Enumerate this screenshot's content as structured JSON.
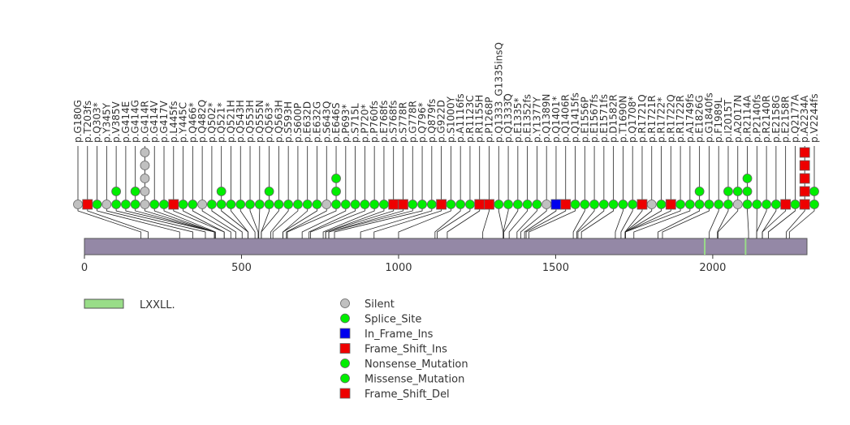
{
  "chart_data": {
    "type": "lollipop",
    "xlim": [
      0,
      2300
    ],
    "x_ticks": [
      "0",
      "500",
      "1000",
      "1500",
      "2000"
    ],
    "protein_length": 2300,
    "domains": [
      {
        "name": "LXXLL.",
        "start": 1972,
        "end": 1977,
        "color": "#99dd88"
      },
      {
        "name": "LXXLL.",
        "start": 2102,
        "end": 2107,
        "color": "#99dd88"
      }
    ],
    "legend": {
      "domain": {
        "label": "LXXLL.",
        "color": "#99dd88"
      },
      "mutation_types": [
        {
          "label": "Silent",
          "color": "#c0c0c0",
          "shape": "circle"
        },
        {
          "label": "Splice_Site",
          "color": "#00ee00",
          "shape": "circle"
        },
        {
          "label": "In_Frame_Ins",
          "color": "#0000ee",
          "shape": "square"
        },
        {
          "label": "Frame_Shift_Ins",
          "color": "#ee0000",
          "shape": "square"
        },
        {
          "label": "Nonsense_Mutation",
          "color": "#00ee00",
          "shape": "circle"
        },
        {
          "label": "Missense_Mutation",
          "color": "#00ee00",
          "shape": "circle"
        },
        {
          "label": "Frame_Shift_Del",
          "color": "#ee0000",
          "shape": "square"
        }
      ]
    },
    "mutations": [
      {
        "label": "p.G180G",
        "pos": 180,
        "stack": [
          "S"
        ]
      },
      {
        "label": "p.T203fs",
        "pos": 203,
        "stack": [
          "F"
        ]
      },
      {
        "label": "p.Q303*",
        "pos": 303,
        "stack": [
          "G"
        ]
      },
      {
        "label": "p.Y345Y",
        "pos": 345,
        "stack": [
          "S"
        ]
      },
      {
        "label": "p.V385V",
        "pos": 385,
        "stack": [
          "G",
          "G"
        ]
      },
      {
        "label": "p.G414E",
        "pos": 414,
        "stack": [
          "G"
        ]
      },
      {
        "label": "p.G414G",
        "pos": 414,
        "stack": [
          "G",
          "G"
        ]
      },
      {
        "label": "p.G414R",
        "pos": 414,
        "stack": [
          "S",
          "S",
          "S",
          "S",
          "S"
        ]
      },
      {
        "label": "p.G414V",
        "pos": 414,
        "stack": [
          "G"
        ]
      },
      {
        "label": "p.G417V",
        "pos": 417,
        "stack": [
          "G"
        ]
      },
      {
        "label": "p.L445fs",
        "pos": 445,
        "stack": [
          "F"
        ]
      },
      {
        "label": "p.Y445C",
        "pos": 445,
        "stack": [
          "G"
        ]
      },
      {
        "label": "p.Q466*",
        "pos": 466,
        "stack": [
          "G"
        ]
      },
      {
        "label": "p.Q482Q",
        "pos": 482,
        "stack": [
          "S"
        ]
      },
      {
        "label": "p.Q502*",
        "pos": 502,
        "stack": [
          "G"
        ]
      },
      {
        "label": "p.Q521*",
        "pos": 521,
        "stack": [
          "G",
          "G"
        ]
      },
      {
        "label": "p.Q521H",
        "pos": 521,
        "stack": [
          "G"
        ]
      },
      {
        "label": "p.Q543H",
        "pos": 543,
        "stack": [
          "G"
        ]
      },
      {
        "label": "p.Q553H",
        "pos": 553,
        "stack": [
          "G"
        ]
      },
      {
        "label": "p.Q555N",
        "pos": 555,
        "stack": [
          "G"
        ]
      },
      {
        "label": "p.Q563*",
        "pos": 563,
        "stack": [
          "G",
          "G"
        ]
      },
      {
        "label": "p.Q563H",
        "pos": 563,
        "stack": [
          "G"
        ]
      },
      {
        "label": "p.S593H",
        "pos": 593,
        "stack": [
          "G"
        ]
      },
      {
        "label": "p.S600P",
        "pos": 600,
        "stack": [
          "G"
        ]
      },
      {
        "label": "p.E632D",
        "pos": 632,
        "stack": [
          "G"
        ]
      },
      {
        "label": "p.E632G",
        "pos": 632,
        "stack": [
          "G"
        ]
      },
      {
        "label": "p.S643Q",
        "pos": 643,
        "stack": [
          "S"
        ]
      },
      {
        "label": "p.E646S",
        "pos": 646,
        "stack": [
          "G",
          "G",
          "G"
        ]
      },
      {
        "label": "p.P693*",
        "pos": 693,
        "stack": [
          "G"
        ]
      },
      {
        "label": "p.S715L",
        "pos": 715,
        "stack": [
          "G"
        ]
      },
      {
        "label": "p.P720*",
        "pos": 720,
        "stack": [
          "G"
        ]
      },
      {
        "label": "p.P760fs",
        "pos": 760,
        "stack": [
          "G"
        ]
      },
      {
        "label": "p.E768fs",
        "pos": 768,
        "stack": [
          "G"
        ]
      },
      {
        "label": "p.S768fs",
        "pos": 768,
        "stack": [
          "F"
        ]
      },
      {
        "label": "p.S778R",
        "pos": 778,
        "stack": [
          "F"
        ]
      },
      {
        "label": "p.G778R",
        "pos": 778,
        "stack": [
          "G"
        ]
      },
      {
        "label": "p.Q796*",
        "pos": 796,
        "stack": [
          "G"
        ]
      },
      {
        "label": "p.Q879fs",
        "pos": 879,
        "stack": [
          "G"
        ]
      },
      {
        "label": "p.G922D",
        "pos": 922,
        "stack": [
          "F"
        ]
      },
      {
        "label": "p.S1000Y",
        "pos": 1000,
        "stack": [
          "G"
        ]
      },
      {
        "label": "p.A1116fs",
        "pos": 1116,
        "stack": [
          "G"
        ]
      },
      {
        "label": "p.R1123C",
        "pos": 1123,
        "stack": [
          "G"
        ]
      },
      {
        "label": "p.R1155H",
        "pos": 1155,
        "stack": [
          "F"
        ]
      },
      {
        "label": "p.P1268P",
        "pos": 1268,
        "stack": [
          "F"
        ]
      },
      {
        "label": "p.Q1333_G1335insQ",
        "pos": 1333,
        "stack": [
          "G"
        ]
      },
      {
        "label": "p.Q1333Q",
        "pos": 1333,
        "stack": [
          "G"
        ]
      },
      {
        "label": "p.E1335*",
        "pos": 1335,
        "stack": [
          "G"
        ]
      },
      {
        "label": "p.E1352fs",
        "pos": 1352,
        "stack": [
          "G"
        ]
      },
      {
        "label": "p.Y1377Y",
        "pos": 1377,
        "stack": [
          "G"
        ]
      },
      {
        "label": "p.Q1389N",
        "pos": 1389,
        "stack": [
          "S"
        ]
      },
      {
        "label": "p.Q1401*",
        "pos": 1401,
        "stack": [
          "I"
        ]
      },
      {
        "label": "p.Q1406R",
        "pos": 1406,
        "stack": [
          "F"
        ]
      },
      {
        "label": "p.Q1415fs",
        "pos": 1415,
        "stack": [
          "G"
        ]
      },
      {
        "label": "p.E1556P",
        "pos": 1556,
        "stack": [
          "G"
        ]
      },
      {
        "label": "p.E1567fs",
        "pos": 1567,
        "stack": [
          "G"
        ]
      },
      {
        "label": "p.E1571fs",
        "pos": 1571,
        "stack": [
          "G"
        ]
      },
      {
        "label": "p.D1582R",
        "pos": 1582,
        "stack": [
          "G"
        ]
      },
      {
        "label": "p.T1690N",
        "pos": 1690,
        "stack": [
          "G"
        ]
      },
      {
        "label": "p.Q1708*",
        "pos": 1708,
        "stack": [
          "G"
        ]
      },
      {
        "label": "p.R1721Q",
        "pos": 1721,
        "stack": [
          "F"
        ]
      },
      {
        "label": "p.R1721R",
        "pos": 1721,
        "stack": [
          "S"
        ]
      },
      {
        "label": "p.R1722*",
        "pos": 1722,
        "stack": [
          "G"
        ]
      },
      {
        "label": "p.R1722Q",
        "pos": 1722,
        "stack": [
          "F"
        ]
      },
      {
        "label": "p.R1722R",
        "pos": 1722,
        "stack": [
          "G"
        ]
      },
      {
        "label": "p.A1749fs",
        "pos": 1749,
        "stack": [
          "G"
        ]
      },
      {
        "label": "p.E1826G",
        "pos": 1826,
        "stack": [
          "G",
          "G"
        ]
      },
      {
        "label": "p.G1840fs",
        "pos": 1840,
        "stack": [
          "G"
        ]
      },
      {
        "label": "p.F1989L",
        "pos": 1989,
        "stack": [
          "G"
        ]
      },
      {
        "label": "p.I2015T",
        "pos": 2015,
        "stack": [
          "G",
          "G"
        ]
      },
      {
        "label": "p.A2017N",
        "pos": 2017,
        "stack": [
          "S",
          "G"
        ]
      },
      {
        "label": "p.R2114A",
        "pos": 2114,
        "stack": [
          "G",
          "G",
          "G"
        ]
      },
      {
        "label": "p.P2140fs",
        "pos": 2140,
        "stack": [
          "G"
        ]
      },
      {
        "label": "p.R2140R",
        "pos": 2140,
        "stack": [
          "G"
        ]
      },
      {
        "label": "p.E2158G",
        "pos": 2158,
        "stack": [
          "G"
        ]
      },
      {
        "label": "p.E2158R",
        "pos": 2158,
        "stack": [
          "F"
        ]
      },
      {
        "label": "p.Q2177A",
        "pos": 2177,
        "stack": [
          "G"
        ]
      },
      {
        "label": "p.A2234A",
        "pos": 2234,
        "stack": [
          "F",
          "F",
          "F",
          "F",
          "F"
        ]
      },
      {
        "label": "p.V2244fs",
        "pos": 2244,
        "stack": [
          "G",
          "G"
        ]
      }
    ]
  }
}
